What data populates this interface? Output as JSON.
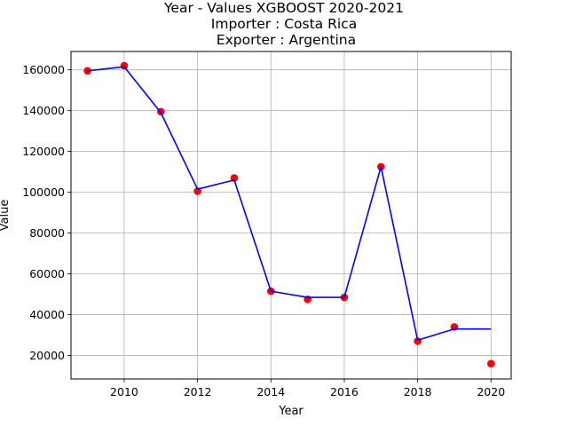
{
  "chart_data": {
    "type": "line",
    "title_lines": [
      "Year - Values XGBOOST 2020-2021",
      "Importer : Costa Rica",
      " Exporter : Argentina"
    ],
    "xlabel": "Year",
    "ylabel": "Value",
    "xlim": [
      2008.55,
      2020.55
    ],
    "ylim": [
      8500,
      169000
    ],
    "xticks": [
      2010,
      2012,
      2014,
      2016,
      2018,
      2020
    ],
    "yticks": [
      20000,
      40000,
      60000,
      80000,
      100000,
      120000,
      140000,
      160000
    ],
    "grid": true,
    "series": [
      {
        "kind": "scatter",
        "color": "#ff0000",
        "points": [
          [
            2009,
            159500
          ],
          [
            2010,
            162000
          ],
          [
            2011,
            139500
          ],
          [
            2012,
            100500
          ],
          [
            2013,
            107000
          ],
          [
            2014,
            51500
          ],
          [
            2015,
            47500
          ],
          [
            2016,
            48500
          ],
          [
            2017,
            112500
          ],
          [
            2018,
            27000
          ],
          [
            2019,
            34000
          ],
          [
            2020,
            16000
          ]
        ]
      },
      {
        "kind": "line",
        "color": "#0000ff",
        "points": [
          [
            2009,
            159500
          ],
          [
            2010,
            161500
          ],
          [
            2011,
            139000
          ],
          [
            2012,
            101500
          ],
          [
            2013,
            106000
          ],
          [
            2014,
            51500
          ],
          [
            2015,
            48500
          ],
          [
            2016,
            48500
          ],
          [
            2017,
            112500
          ],
          [
            2018,
            27500
          ],
          [
            2019,
            33000
          ],
          [
            2020,
            33000
          ]
        ]
      }
    ]
  }
}
